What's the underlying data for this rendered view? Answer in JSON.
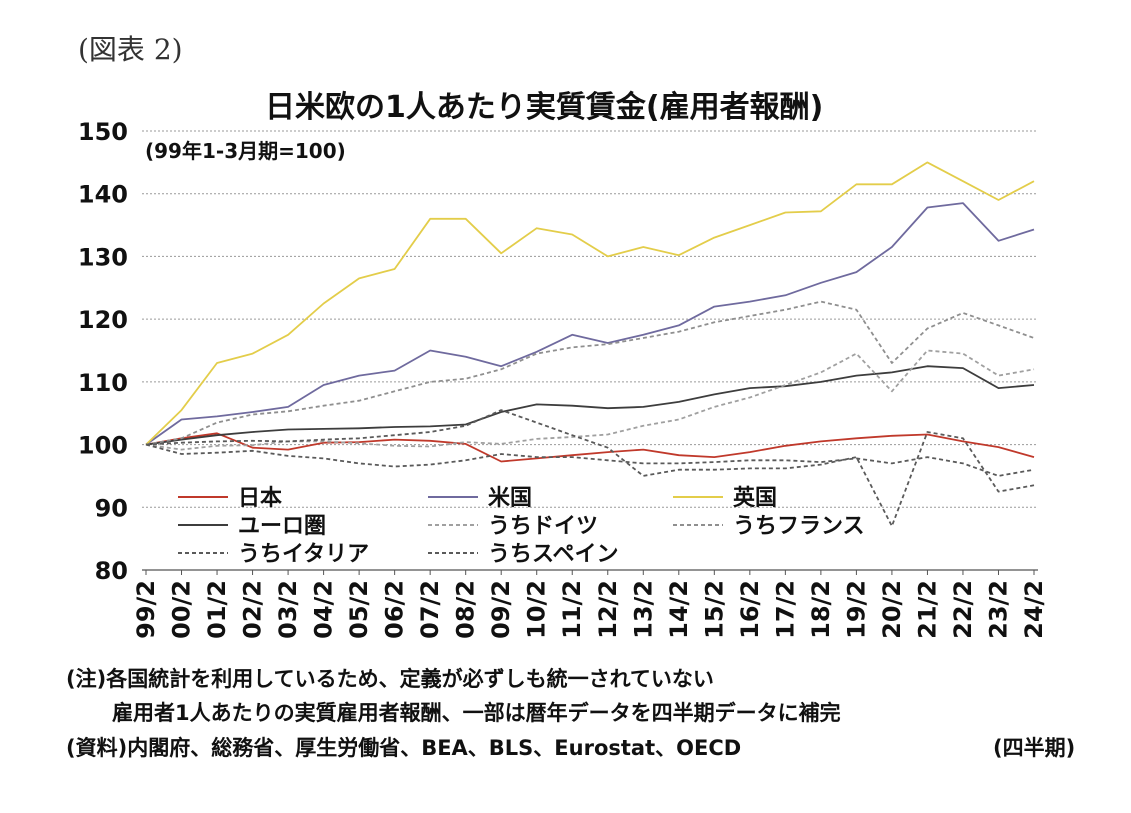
{
  "figure_label": "(図表 2)",
  "notes": {
    "note1": "(注)各国統計を利用しているため、定義が必ずしも統一されていない",
    "note2": "雇用者1人あたりの実質雇用者報酬、一部は暦年データを四半期データに補完",
    "source": "(資料)内閣府、総務省、厚生労働省、BEA、BLS、Eurostat、OECD",
    "unit": "(四半期)"
  },
  "chart_data": {
    "type": "line",
    "title": "日米欧の1人あたり実質賃金(雇用者報酬)",
    "subtitle": "(99年1-3月期=100)",
    "ylim": [
      80,
      150
    ],
    "yticks": [
      80,
      90,
      100,
      110,
      120,
      130,
      140,
      150
    ],
    "grid": true,
    "legend_position": "bottom-left inside",
    "categories": [
      "99/2",
      "00/2",
      "01/2",
      "02/2",
      "03/2",
      "04/2",
      "05/2",
      "06/2",
      "07/2",
      "08/2",
      "09/2",
      "10/2",
      "11/2",
      "12/2",
      "13/2",
      "14/2",
      "15/2",
      "16/2",
      "17/2",
      "18/2",
      "19/2",
      "20/2",
      "21/2",
      "22/2",
      "23/2",
      "24/2"
    ],
    "series": [
      {
        "name": "日本",
        "color": "#c0392b",
        "dash": "solid",
        "values": [
          100,
          101,
          101.8,
          99.5,
          99.2,
          100.3,
          100.4,
          100.8,
          100.6,
          100.1,
          97.3,
          97.8,
          98.3,
          98.8,
          99.2,
          98.3,
          98,
          98.8,
          99.8,
          100.5,
          101,
          101.4,
          101.6,
          100.5,
          99.6,
          98
        ]
      },
      {
        "name": "米国",
        "color": "#6f6a9e",
        "dash": "solid",
        "values": [
          100,
          104,
          104.5,
          105.2,
          106,
          109.5,
          111,
          111.8,
          115,
          114,
          112.5,
          114.8,
          117.5,
          116.2,
          117.5,
          119,
          122,
          122.8,
          123.8,
          125.8,
          127.5,
          131.5,
          137.8,
          138.5,
          132.5,
          134.3
        ]
      },
      {
        "name": "英国",
        "color": "#e3cd4a",
        "dash": "solid",
        "values": [
          100,
          105.5,
          113,
          114.5,
          117.5,
          122.5,
          126.5,
          128,
          136,
          136,
          130.5,
          134.5,
          133.5,
          130,
          131.5,
          130.2,
          133,
          135,
          137,
          137.2,
          141.5,
          141.5,
          145,
          142,
          139,
          142
        ]
      },
      {
        "name": "ユーロ圏",
        "color": "#3d3d3d",
        "dash": "solid",
        "values": [
          100,
          100.8,
          101.5,
          102,
          102.4,
          102.5,
          102.6,
          102.8,
          102.9,
          103.2,
          105.2,
          106.4,
          106.2,
          105.8,
          106,
          106.8,
          108,
          109,
          109.3,
          110,
          111,
          111.5,
          112.5,
          112.2,
          109,
          109.5
        ]
      },
      {
        "name": "うちドイツ",
        "color": "#a0a0a0",
        "dash": "4,3",
        "values": [
          100,
          99.2,
          99.8,
          99.9,
          100.5,
          100.5,
          100.2,
          99.8,
          99.7,
          100.4,
          100.1,
          100.9,
          101.2,
          101.6,
          103,
          104,
          106,
          107.5,
          109.5,
          111.5,
          114.5,
          108.5,
          115,
          114.5,
          111,
          112
        ]
      },
      {
        "name": "うちフランス",
        "color": "#8f8f8f",
        "dash": "4,3",
        "values": [
          100,
          101,
          103.5,
          104.8,
          105.3,
          106.2,
          107,
          108.5,
          110,
          110.5,
          112,
          114.5,
          115.5,
          116,
          117,
          118,
          119.5,
          120.5,
          121.5,
          122.8,
          121.5,
          113,
          118.5,
          121,
          119,
          117
        ]
      },
      {
        "name": "うちイタリア",
        "color": "#5a5a5a",
        "dash": "4,3",
        "values": [
          100,
          98.5,
          98.7,
          99,
          98.2,
          97.8,
          97,
          96.5,
          96.8,
          97.5,
          98.5,
          98,
          98,
          97.5,
          97,
          97,
          97.2,
          97.5,
          97.5,
          97.2,
          97.8,
          97,
          98,
          97,
          95,
          96
        ]
      },
      {
        "name": "うちスペイン",
        "color": "#5a5a5a",
        "dash": "4,3",
        "values": [
          100,
          100.3,
          100.5,
          100.6,
          100.5,
          100.8,
          101,
          101.5,
          102,
          103,
          105.5,
          103.5,
          101.5,
          99.5,
          95,
          96,
          96,
          96.2,
          96.2,
          96.8,
          98,
          87,
          102,
          101,
          92.5,
          93.5
        ]
      }
    ]
  }
}
